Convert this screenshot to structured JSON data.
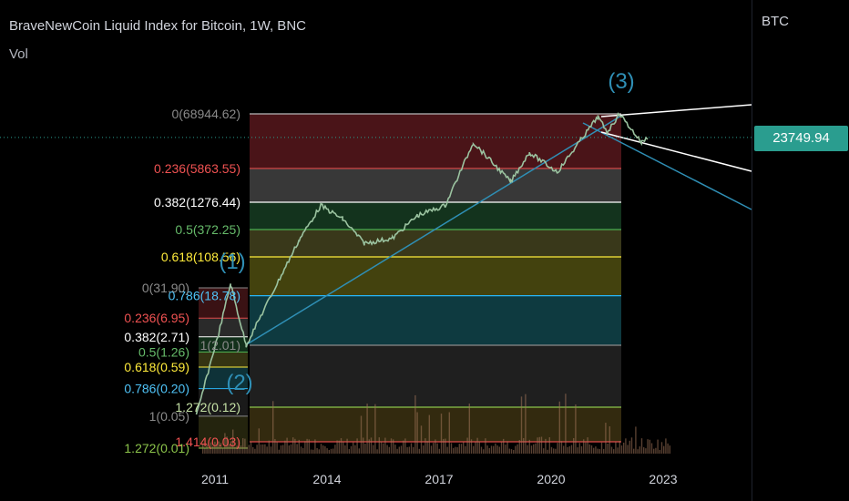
{
  "header": {
    "title": "BraveNewCoin Liquid Index for Bitcoin, 1W, BNC",
    "volume_label": "Vol",
    "symbol_label": "BTC",
    "last_price": "23749.94"
  },
  "colors": {
    "background": "#000000",
    "candle": "#9bc3a0",
    "trendline": "#2f8fb5",
    "wave_label": "#2f8fb5",
    "price_badge": "#2a9d8f",
    "volume": "#a0755a"
  },
  "chart_data": {
    "type": "line",
    "title": "BraveNewCoin Liquid Index for Bitcoin, 1W, BNC",
    "y_scale": "log",
    "x_ticks": [
      "2011",
      "2014",
      "2017",
      "2020",
      "2023"
    ],
    "series": [
      {
        "x": [
          "2010-07",
          "2011-06",
          "2011-11",
          "2013-04",
          "2013-11",
          "2014-06",
          "2015-01",
          "2015-10",
          "2016-06",
          "2017-03",
          "2017-12",
          "2018-12",
          "2019-06",
          "2020-03",
          "2020-12",
          "2021-04",
          "2021-07",
          "2021-11",
          "2022-06",
          "2022-08"
        ],
        "values": [
          0.05,
          31.9,
          2.01,
          230,
          1100,
          600,
          200,
          250,
          700,
          1100,
          19000,
          3200,
          12000,
          5000,
          28000,
          60000,
          30000,
          68944.62,
          19000,
          23749.94
        ]
      }
    ],
    "fib_upper": {
      "levels": [
        {
          "label": "0(68944.62)",
          "value": 68944.62
        },
        {
          "label": "0.236(5863.55)",
          "value": 5863.55
        },
        {
          "label": "0.382(1276.44)",
          "value": 1276.44
        },
        {
          "label": "0.5(372.25)",
          "value": 372.25
        },
        {
          "label": "0.618(108.56)",
          "value": 108.56
        },
        {
          "label": "0.786(18.78)",
          "value": 18.78
        },
        {
          "label": "1(2.01)",
          "value": 2.01
        },
        {
          "label": "1.272(0.12)",
          "value": 0.12
        },
        {
          "label": "1.414(0.03)",
          "value": 0.03
        }
      ]
    },
    "fib_lower": {
      "levels": [
        {
          "label": "0(31.90)",
          "value": 31.9
        },
        {
          "label": "0.236(6.95)",
          "value": 6.95
        },
        {
          "label": "0.382(2.71)",
          "value": 2.71
        },
        {
          "label": "0.5(1.26)",
          "value": 1.26
        },
        {
          "label": "0.618(0.59)",
          "value": 0.59
        },
        {
          "label": "0.786(0.20)",
          "value": 0.2
        },
        {
          "label": "1(0.05)",
          "value": 0.05
        },
        {
          "label": "1.272(0.01)",
          "value": 0.01
        }
      ]
    },
    "wave_labels": [
      "(1)",
      "(2)",
      "(3)"
    ],
    "last_price": 23749.94
  }
}
